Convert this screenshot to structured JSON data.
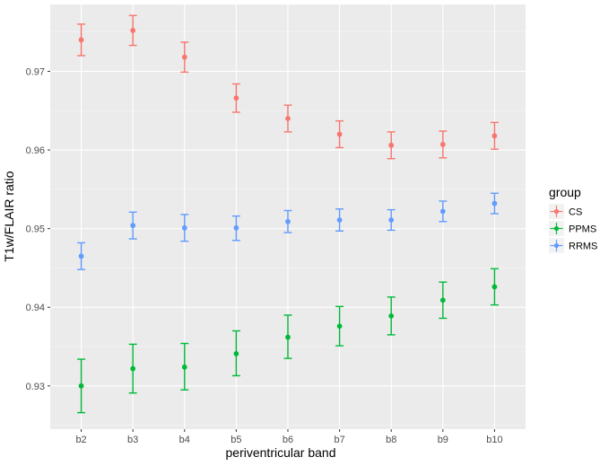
{
  "chart_data": {
    "type": "scatter",
    "subtype": "point-with-errorbars",
    "xlabel": "periventricular band",
    "ylabel": "T1w/FLAIR ratio",
    "categories": [
      "b2",
      "b3",
      "b4",
      "b5",
      "b6",
      "b7",
      "b8",
      "b9",
      "b10"
    ],
    "ylim": [
      0.9245,
      0.9785
    ],
    "yticks": [
      0.93,
      0.94,
      0.95,
      0.96,
      0.97
    ],
    "ytick_labels": [
      "0.93",
      "0.94",
      "0.95",
      "0.96",
      "0.97"
    ],
    "grid": true,
    "legend": {
      "title": "group",
      "position": "right"
    },
    "series": [
      {
        "name": "CS",
        "color": "#F8766D",
        "values": [
          0.974,
          0.9752,
          0.9718,
          0.9666,
          0.964,
          0.962,
          0.9606,
          0.9607,
          0.9618
        ],
        "lower": [
          0.972,
          0.9733,
          0.9699,
          0.9648,
          0.9623,
          0.9603,
          0.9589,
          0.959,
          0.9601
        ],
        "upper": [
          0.976,
          0.9771,
          0.9737,
          0.9684,
          0.9657,
          0.9637,
          0.9623,
          0.9624,
          0.9635
        ]
      },
      {
        "name": "PPMS",
        "color": "#00BA38",
        "values": [
          0.93,
          0.9322,
          0.9324,
          0.9341,
          0.9362,
          0.9376,
          0.9389,
          0.9409,
          0.9426
        ],
        "lower": [
          0.9266,
          0.9291,
          0.9295,
          0.9313,
          0.9335,
          0.9351,
          0.9365,
          0.9386,
          0.9403
        ],
        "upper": [
          0.9334,
          0.9353,
          0.9354,
          0.937,
          0.939,
          0.9401,
          0.9413,
          0.9432,
          0.9449
        ]
      },
      {
        "name": "RRMS",
        "color": "#619CFF",
        "values": [
          0.9465,
          0.9504,
          0.9501,
          0.9501,
          0.9509,
          0.9511,
          0.9511,
          0.9522,
          0.9532
        ],
        "lower": [
          0.9448,
          0.9487,
          0.9484,
          0.9485,
          0.9495,
          0.9497,
          0.9498,
          0.9509,
          0.9519
        ],
        "upper": [
          0.9482,
          0.9521,
          0.9518,
          0.9516,
          0.9523,
          0.9525,
          0.9524,
          0.9535,
          0.9545
        ]
      }
    ]
  }
}
